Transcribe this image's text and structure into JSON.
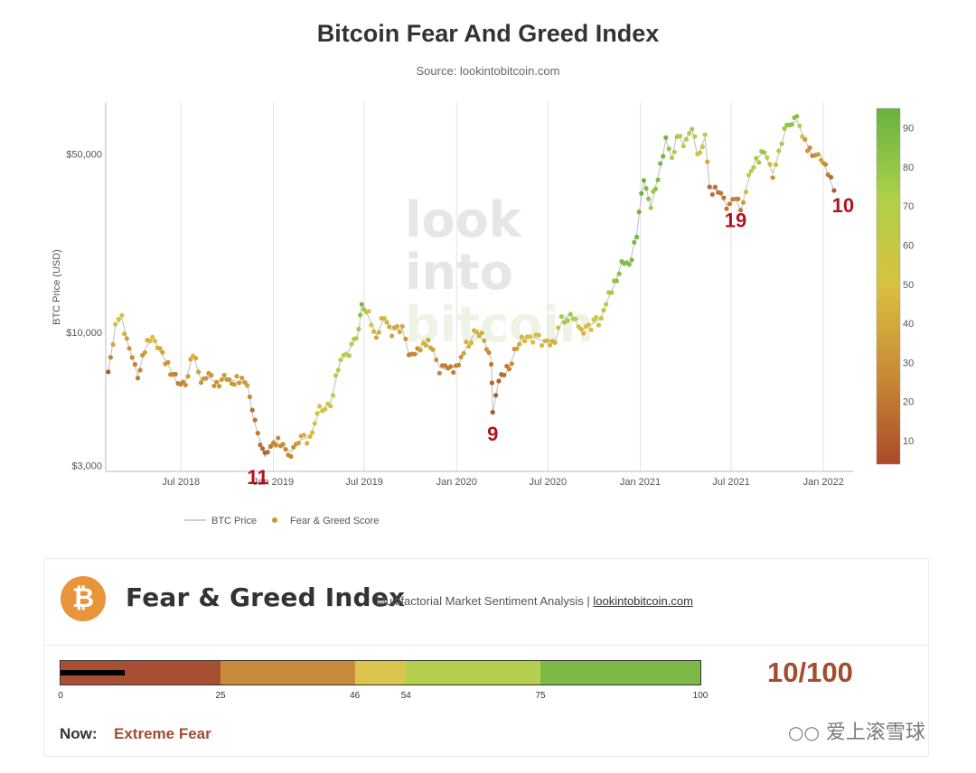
{
  "header": {
    "title": "Bitcoin Fear And Greed Index",
    "source": "Source: lookintobitcoin.com"
  },
  "chart_data": {
    "type": "scatter",
    "title": "Bitcoin Fear And Greed Index",
    "xlabel": "",
    "ylabel": "BTC Price (USD)",
    "y_scale": "log",
    "y_ticks": [
      "$3,000",
      "$10,000",
      "$50,000"
    ],
    "y_tick_values": [
      3000,
      10000,
      50000
    ],
    "x_ticks": [
      "Jul 2018",
      "Jan 2019",
      "Jul 2019",
      "Jan 2020",
      "Jul 2020",
      "Jan 2021",
      "Jul 2021",
      "Jan 2022"
    ],
    "x_tick_values": [
      "2018-07-01",
      "2019-01-01",
      "2019-07-01",
      "2020-01-01",
      "2020-07-01",
      "2021-01-01",
      "2021-07-01",
      "2022-01-01"
    ],
    "grid": "vertical",
    "legend": [
      "BTC Price",
      "Fear & Greed Score"
    ],
    "legend_placement": "bottom-left",
    "colorbar": {
      "ticks": [
        10,
        20,
        30,
        40,
        50,
        60,
        70,
        80,
        90
      ],
      "min": 4,
      "max": 95,
      "colors": [
        "#a84a2a",
        "#c98a35",
        "#d9c040",
        "#aed04a",
        "#66b240"
      ]
    },
    "annotations": [
      {
        "text": "11",
        "date": "2018-12-15",
        "price": 3200
      },
      {
        "text": "9",
        "date": "2020-03-13",
        "price": 4800
      },
      {
        "text": "19",
        "date": "2021-06-22",
        "price": 31500
      },
      {
        "text": "10",
        "date": "2022-01-22",
        "price": 36000
      }
    ],
    "points": [
      {
        "date": "2018-02-06",
        "price": 7000,
        "score": 8
      },
      {
        "date": "2018-02-20",
        "price": 10500,
        "score": 55
      },
      {
        "date": "2018-03-05",
        "price": 11400,
        "score": 50
      },
      {
        "date": "2018-03-20",
        "price": 8600,
        "score": 30
      },
      {
        "date": "2018-04-06",
        "price": 6800,
        "score": 20
      },
      {
        "date": "2018-04-20",
        "price": 8500,
        "score": 35
      },
      {
        "date": "2018-05-05",
        "price": 9700,
        "score": 50
      },
      {
        "date": "2018-05-20",
        "price": 8400,
        "score": 40
      },
      {
        "date": "2018-06-05",
        "price": 7500,
        "score": 30
      },
      {
        "date": "2018-06-25",
        "price": 6200,
        "score": 22
      },
      {
        "date": "2018-07-10",
        "price": 6400,
        "score": 28
      },
      {
        "date": "2018-07-25",
        "price": 8200,
        "score": 45
      },
      {
        "date": "2018-08-10",
        "price": 6500,
        "score": 30
      },
      {
        "date": "2018-08-25",
        "price": 6700,
        "score": 32
      },
      {
        "date": "2018-09-10",
        "price": 6300,
        "score": 30
      },
      {
        "date": "2018-09-25",
        "price": 6600,
        "score": 33
      },
      {
        "date": "2018-10-10",
        "price": 6500,
        "score": 32
      },
      {
        "date": "2018-10-25",
        "price": 6400,
        "score": 33
      },
      {
        "date": "2018-11-10",
        "price": 6400,
        "score": 35
      },
      {
        "date": "2018-11-20",
        "price": 4800,
        "score": 18
      },
      {
        "date": "2018-12-01",
        "price": 4000,
        "score": 20
      },
      {
        "date": "2018-12-15",
        "price": 3250,
        "score": 11
      },
      {
        "date": "2019-01-01",
        "price": 3800,
        "score": 25
      },
      {
        "date": "2019-01-15",
        "price": 3600,
        "score": 28
      },
      {
        "date": "2019-02-05",
        "price": 3400,
        "score": 25
      },
      {
        "date": "2019-02-25",
        "price": 3800,
        "score": 40
      },
      {
        "date": "2019-03-15",
        "price": 3900,
        "score": 45
      },
      {
        "date": "2019-04-03",
        "price": 4900,
        "score": 55
      },
      {
        "date": "2019-04-25",
        "price": 5300,
        "score": 60
      },
      {
        "date": "2019-05-15",
        "price": 7800,
        "score": 65
      },
      {
        "date": "2019-06-01",
        "price": 8500,
        "score": 68
      },
      {
        "date": "2019-06-20",
        "price": 10000,
        "score": 75
      },
      {
        "date": "2019-06-26",
        "price": 12900,
        "score": 90
      },
      {
        "date": "2019-07-10",
        "price": 11500,
        "score": 55
      },
      {
        "date": "2019-07-25",
        "price": 9800,
        "score": 40
      },
      {
        "date": "2019-08-10",
        "price": 11300,
        "score": 45
      },
      {
        "date": "2019-08-25",
        "price": 10200,
        "score": 38
      },
      {
        "date": "2019-09-15",
        "price": 10300,
        "score": 40
      },
      {
        "date": "2019-09-28",
        "price": 8200,
        "score": 22
      },
      {
        "date": "2019-10-15",
        "price": 8200,
        "score": 28
      },
      {
        "date": "2019-10-27",
        "price": 9300,
        "score": 45
      },
      {
        "date": "2019-11-15",
        "price": 8500,
        "score": 35
      },
      {
        "date": "2019-11-28",
        "price": 7300,
        "score": 25
      },
      {
        "date": "2019-12-15",
        "price": 7100,
        "score": 22
      },
      {
        "date": "2020-01-05",
        "price": 7500,
        "score": 25
      },
      {
        "date": "2020-01-20",
        "price": 8700,
        "score": 45
      },
      {
        "date": "2020-02-10",
        "price": 10200,
        "score": 45
      },
      {
        "date": "2020-02-25",
        "price": 9200,
        "score": 38
      },
      {
        "date": "2020-03-10",
        "price": 7900,
        "score": 20
      },
      {
        "date": "2020-03-13",
        "price": 4800,
        "score": 9
      },
      {
        "date": "2020-03-25",
        "price": 6500,
        "score": 12
      },
      {
        "date": "2020-04-10",
        "price": 7000,
        "score": 20
      },
      {
        "date": "2020-04-30",
        "price": 8700,
        "score": 35
      },
      {
        "date": "2020-05-10",
        "price": 9500,
        "score": 45
      },
      {
        "date": "2020-06-01",
        "price": 9600,
        "score": 50
      },
      {
        "date": "2020-06-25",
        "price": 9200,
        "score": 45
      },
      {
        "date": "2020-07-15",
        "price": 9200,
        "score": 42
      },
      {
        "date": "2020-07-28",
        "price": 11000,
        "score": 75
      },
      {
        "date": "2020-08-15",
        "price": 11800,
        "score": 78
      },
      {
        "date": "2020-09-05",
        "price": 10200,
        "score": 45
      },
      {
        "date": "2020-09-25",
        "price": 10700,
        "score": 50
      },
      {
        "date": "2020-10-15",
        "price": 11400,
        "score": 60
      },
      {
        "date": "2020-10-25",
        "price": 13000,
        "score": 72
      },
      {
        "date": "2020-11-10",
        "price": 15300,
        "score": 80
      },
      {
        "date": "2020-11-25",
        "price": 18800,
        "score": 88
      },
      {
        "date": "2020-12-10",
        "price": 18300,
        "score": 85
      },
      {
        "date": "2020-12-25",
        "price": 24500,
        "score": 92
      },
      {
        "date": "2021-01-08",
        "price": 40000,
        "score": 94
      },
      {
        "date": "2021-01-22",
        "price": 31000,
        "score": 75
      },
      {
        "date": "2021-02-10",
        "price": 44500,
        "score": 90
      },
      {
        "date": "2021-02-21",
        "price": 57000,
        "score": 92
      },
      {
        "date": "2021-03-05",
        "price": 48000,
        "score": 70
      },
      {
        "date": "2021-03-15",
        "price": 60000,
        "score": 75
      },
      {
        "date": "2021-03-28",
        "price": 55000,
        "score": 70
      },
      {
        "date": "2021-04-14",
        "price": 63000,
        "score": 75
      },
      {
        "date": "2021-04-25",
        "price": 49000,
        "score": 55
      },
      {
        "date": "2021-05-10",
        "price": 58000,
        "score": 65
      },
      {
        "date": "2021-05-19",
        "price": 37000,
        "score": 15
      },
      {
        "date": "2021-06-05",
        "price": 36000,
        "score": 20
      },
      {
        "date": "2021-06-22",
        "price": 31500,
        "score": 19
      },
      {
        "date": "2021-07-10",
        "price": 33500,
        "score": 25
      },
      {
        "date": "2021-07-20",
        "price": 29800,
        "score": 20
      },
      {
        "date": "2021-08-05",
        "price": 40000,
        "score": 60
      },
      {
        "date": "2021-08-20",
        "price": 48000,
        "score": 75
      },
      {
        "date": "2021-09-05",
        "price": 51000,
        "score": 78
      },
      {
        "date": "2021-09-22",
        "price": 42000,
        "score": 30
      },
      {
        "date": "2021-10-10",
        "price": 55000,
        "score": 75
      },
      {
        "date": "2021-10-20",
        "price": 65000,
        "score": 80
      },
      {
        "date": "2021-11-09",
        "price": 67500,
        "score": 85
      },
      {
        "date": "2021-11-25",
        "price": 57000,
        "score": 35
      },
      {
        "date": "2021-12-10",
        "price": 49000,
        "score": 25
      },
      {
        "date": "2021-12-27",
        "price": 49500,
        "score": 40
      },
      {
        "date": "2022-01-10",
        "price": 41500,
        "score": 22
      },
      {
        "date": "2022-01-22",
        "price": 36000,
        "score": 10
      }
    ]
  },
  "index_card": {
    "title": "Fear & Greed Index",
    "subtitle": "Multifactorial Market Sentiment Analysis |",
    "link_text": "lookintobitcoin.com",
    "gauge_segments": [
      {
        "from": 0,
        "to": 25,
        "color": "#a84f33"
      },
      {
        "from": 25,
        "to": 46,
        "color": "#c98b3b"
      },
      {
        "from": 46,
        "to": 54,
        "color": "#dcc54d"
      },
      {
        "from": 54,
        "to": 75,
        "color": "#b4cf4e"
      },
      {
        "from": 75,
        "to": 100,
        "color": "#7dba45"
      }
    ],
    "gauge_ticks": [
      "0",
      "25",
      "46",
      "54",
      "75",
      "100"
    ],
    "gauge_value": 10,
    "score_text": "10/100",
    "now_label": "Now:",
    "now_value": "Extreme Fear",
    "btc_symbol": "₿"
  },
  "watermark": {
    "chart_lines": [
      "look",
      "into",
      "bitcoin"
    ],
    "corner_text": "爱上滚雪球"
  },
  "colors": {
    "extreme_fear": "#a34c2f",
    "greed": "#66b240",
    "annotation": "#b3121b"
  }
}
